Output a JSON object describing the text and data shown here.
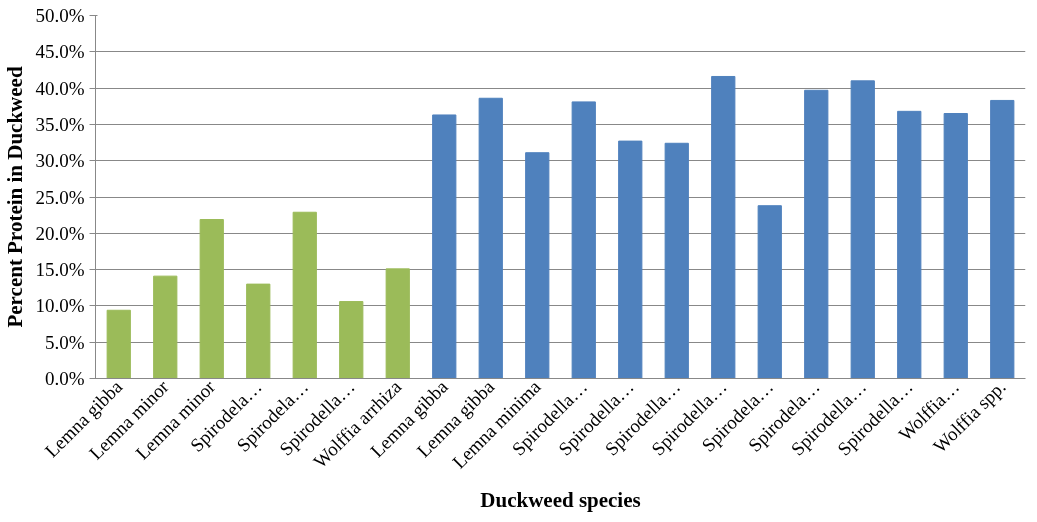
{
  "chart_data": {
    "type": "bar",
    "xlabel": "Duckweed species",
    "ylabel": "Percent Protein in Duckweed",
    "categories": [
      "Lemna gibba",
      "Lemna minor",
      "Lemna minor",
      "Spirodela…",
      "Spirodela…",
      "Spirodella…",
      "Wolffia arrhiza",
      "Lemna gibba",
      "Lemna gibba",
      "Lemna minima",
      "Spirodella…",
      "Spirodella…",
      "Spirodella…",
      "Spirodella…",
      "Spirodela…",
      "Spirodela…",
      "Spirodella…",
      "Spirodella…",
      "Wolffia…",
      "Wolffia spp."
    ],
    "values": [
      9.4,
      14.1,
      21.9,
      13.0,
      22.9,
      10.6,
      15.1,
      36.3,
      38.6,
      31.1,
      38.1,
      32.7,
      32.4,
      41.6,
      23.8,
      39.7,
      41.0,
      36.8,
      36.5,
      38.3
    ],
    "colors": [
      "#9bbb59",
      "#9bbb59",
      "#9bbb59",
      "#9bbb59",
      "#9bbb59",
      "#9bbb59",
      "#9bbb59",
      "#4f81bd",
      "#4f81bd",
      "#4f81bd",
      "#4f81bd",
      "#4f81bd",
      "#4f81bd",
      "#4f81bd",
      "#4f81bd",
      "#4f81bd",
      "#4f81bd",
      "#4f81bd",
      "#4f81bd",
      "#4f81bd"
    ],
    "ylim": [
      0,
      50
    ],
    "yticks": [
      {
        "value": 0,
        "label": "0.0%"
      },
      {
        "value": 5,
        "label": "5.0%"
      },
      {
        "value": 10,
        "label": "10.0%"
      },
      {
        "value": 15,
        "label": "15.0%"
      },
      {
        "value": 20,
        "label": "20.0%"
      },
      {
        "value": 25,
        "label": "25.0%"
      },
      {
        "value": 30,
        "label": "30.0%"
      },
      {
        "value": 35,
        "label": "35.0%"
      },
      {
        "value": 40,
        "label": "40.0%"
      },
      {
        "value": 45,
        "label": "45.0%"
      },
      {
        "value": 50,
        "label": "50.0%"
      }
    ],
    "grid": "y"
  }
}
